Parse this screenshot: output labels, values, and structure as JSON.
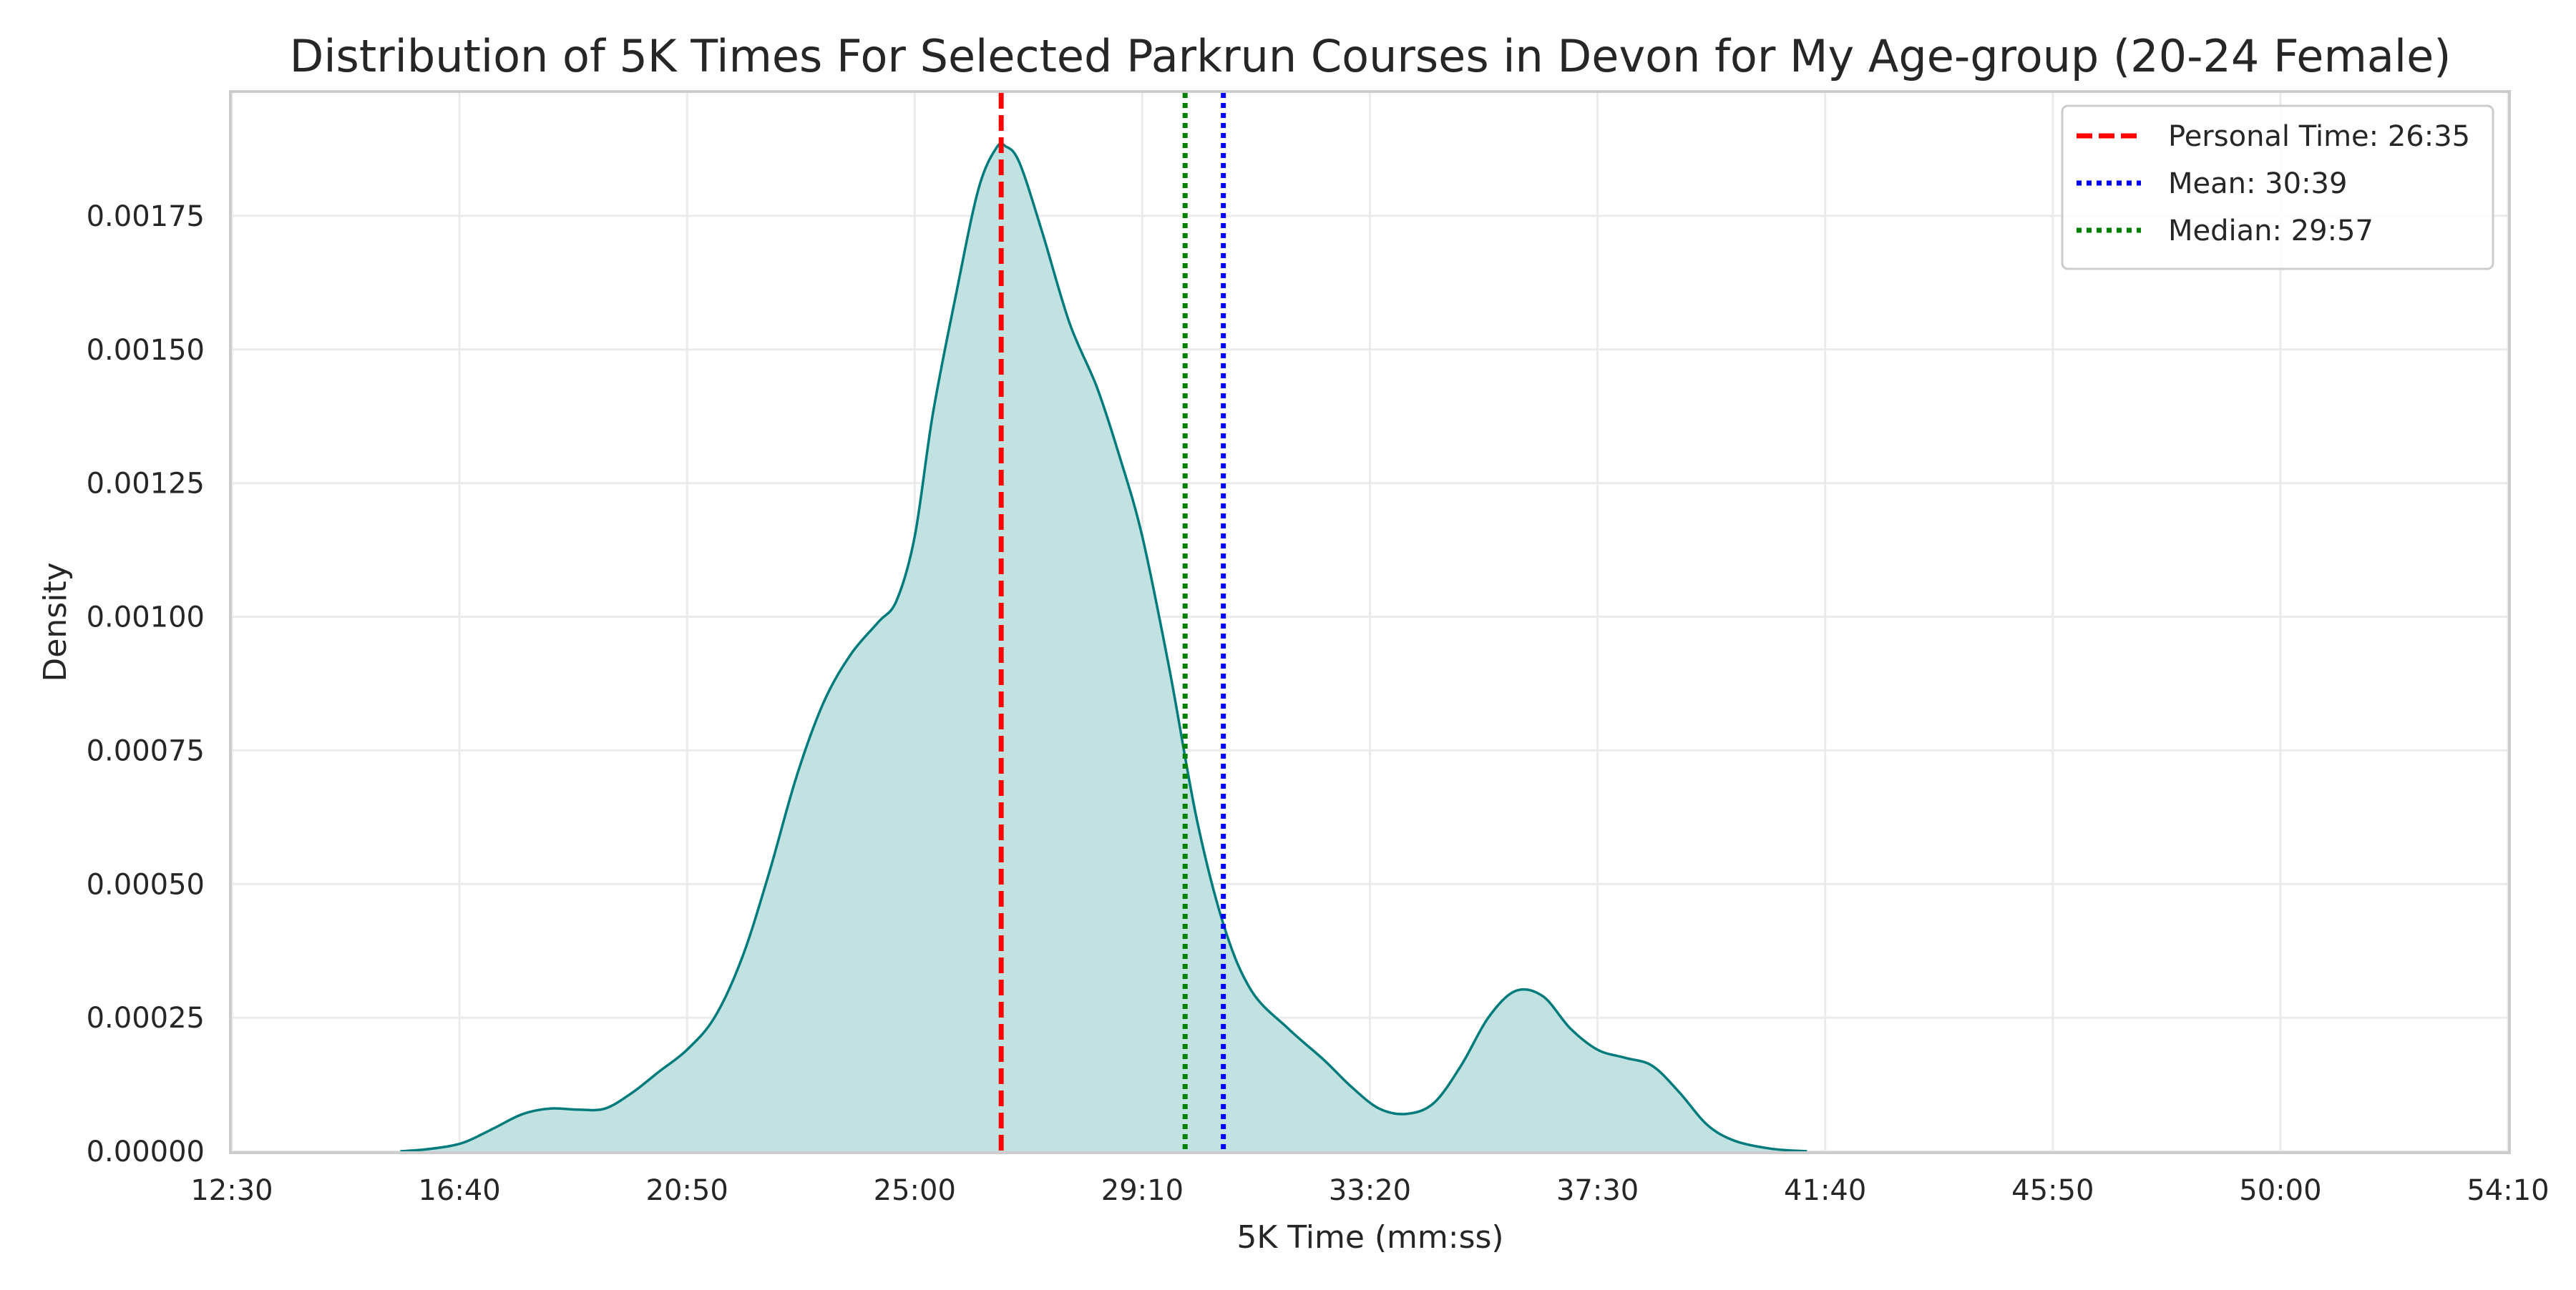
{
  "chart_data": {
    "type": "area",
    "title": "Distribution of 5K Times For Selected Parkrun Courses in Devon for My Age-group (20-24 Female)",
    "xlabel": "5K Time (mm:ss)",
    "ylabel": "Density",
    "xlim_seconds": [
      750,
      3250
    ],
    "ylim": [
      0,
      0.00198
    ],
    "x_ticks": [
      {
        "value": 750,
        "label": "12:30"
      },
      {
        "value": 1000,
        "label": "16:40"
      },
      {
        "value": 1250,
        "label": "20:50"
      },
      {
        "value": 1500,
        "label": "25:00"
      },
      {
        "value": 1750,
        "label": "29:10"
      },
      {
        "value": 2000,
        "label": "33:20"
      },
      {
        "value": 2250,
        "label": "37:30"
      },
      {
        "value": 2500,
        "label": "41:40"
      },
      {
        "value": 2750,
        "label": "45:50"
      },
      {
        "value": 3000,
        "label": "50:00"
      },
      {
        "value": 3250,
        "label": "54:10"
      }
    ],
    "y_ticks": [
      {
        "value": 0,
        "label": "0.00000"
      },
      {
        "value": 0.00025,
        "label": "0.00025"
      },
      {
        "value": 0.0005,
        "label": "0.00050"
      },
      {
        "value": 0.00075,
        "label": "0.00075"
      },
      {
        "value": 0.001,
        "label": "0.00100"
      },
      {
        "value": 0.00125,
        "label": "0.00125"
      },
      {
        "value": 0.0015,
        "label": "0.00150"
      },
      {
        "value": 0.00175,
        "label": "0.00175"
      }
    ],
    "grid": true,
    "legend_position": "top-right",
    "curve": {
      "color": "#007b7b",
      "fill_color": "#bfdfdf",
      "points": [
        [
          935,
          0.0
        ],
        [
          960,
          3e-06
        ],
        [
          990,
          1e-05
        ],
        [
          1010,
          2e-05
        ],
        [
          1040,
          4.5e-05
        ],
        [
          1070,
          7e-05
        ],
        [
          1100,
          8e-05
        ],
        [
          1130,
          7.8e-05
        ],
        [
          1160,
          8e-05
        ],
        [
          1190,
          0.00011
        ],
        [
          1220,
          0.00015
        ],
        [
          1250,
          0.00019
        ],
        [
          1280,
          0.00025
        ],
        [
          1310,
          0.00036
        ],
        [
          1340,
          0.00052
        ],
        [
          1370,
          0.0007
        ],
        [
          1400,
          0.00084
        ],
        [
          1430,
          0.00093
        ],
        [
          1460,
          0.00099
        ],
        [
          1480,
          0.00103
        ],
        [
          1500,
          0.00115
        ],
        [
          1520,
          0.00138
        ],
        [
          1545,
          0.0016
        ],
        [
          1570,
          0.0018
        ],
        [
          1590,
          0.001878
        ],
        [
          1600,
          0.00188
        ],
        [
          1615,
          0.00185
        ],
        [
          1640,
          0.00172
        ],
        [
          1670,
          0.00155
        ],
        [
          1700,
          0.00143
        ],
        [
          1725,
          0.0013
        ],
        [
          1750,
          0.00115
        ],
        [
          1780,
          0.0009
        ],
        [
          1810,
          0.00062
        ],
        [
          1840,
          0.00042
        ],
        [
          1870,
          0.0003
        ],
        [
          1910,
          0.00023
        ],
        [
          1950,
          0.00017
        ],
        [
          1980,
          0.00012
        ],
        [
          2010,
          8e-05
        ],
        [
          2040,
          7e-05
        ],
        [
          2070,
          9e-05
        ],
        [
          2100,
          0.00016
        ],
        [
          2130,
          0.00025
        ],
        [
          2160,
          0.0003
        ],
        [
          2190,
          0.00029
        ],
        [
          2220,
          0.00023
        ],
        [
          2250,
          0.00019
        ],
        [
          2280,
          0.000175
        ],
        [
          2310,
          0.00016
        ],
        [
          2340,
          0.00011
        ],
        [
          2370,
          5e-05
        ],
        [
          2400,
          2e-05
        ],
        [
          2440,
          5e-06
        ],
        [
          2480,
          0.0
        ]
      ]
    },
    "reference_lines": [
      {
        "name": "Personal Time: 26:35",
        "x": 1595,
        "color": "#ff0000",
        "style": "dashed"
      },
      {
        "name": "Mean: 30:39",
        "x": 1839,
        "color": "#0000ff",
        "style": "dotted"
      },
      {
        "name": "Median: 29:57",
        "x": 1797,
        "color": "#008000",
        "style": "dotted"
      }
    ]
  }
}
